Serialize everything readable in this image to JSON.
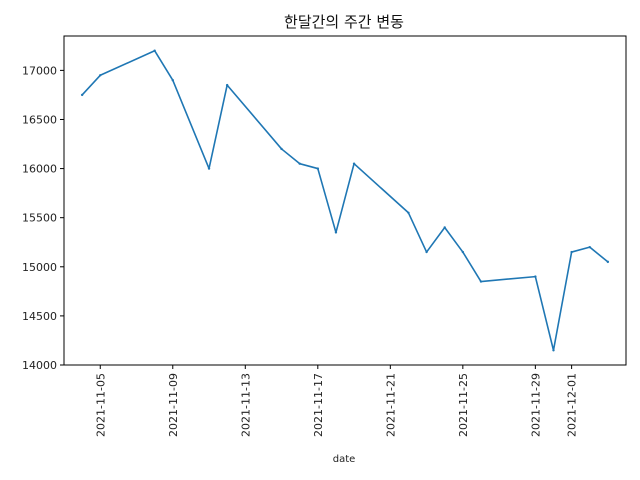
{
  "chart_data": {
    "type": "line",
    "title": "한달간의 주간 변동",
    "xlabel": "date",
    "ylabel": "",
    "x_ticks": [
      "2021-11-05",
      "2021-11-09",
      "2021-11-13",
      "2021-11-17",
      "2021-11-21",
      "2021-11-25",
      "2021-11-29",
      "2021-12-01"
    ],
    "y_ticks": [
      14000,
      14500,
      15000,
      15500,
      16000,
      16500,
      17000
    ],
    "xlim": [
      "2021-11-03",
      "2021-12-04"
    ],
    "ylim": [
      14000,
      17350
    ],
    "grid": false,
    "series": [
      {
        "color": "#1f77b4",
        "points": [
          {
            "x": "2021-11-04",
            "y": 16750
          },
          {
            "x": "2021-11-05",
            "y": 16950
          },
          {
            "x": "2021-11-08",
            "y": 17200
          },
          {
            "x": "2021-11-09",
            "y": 16900
          },
          {
            "x": "2021-11-11",
            "y": 16000
          },
          {
            "x": "2021-11-12",
            "y": 16850
          },
          {
            "x": "2021-11-15",
            "y": 16200
          },
          {
            "x": "2021-11-16",
            "y": 16050
          },
          {
            "x": "2021-11-17",
            "y": 16000
          },
          {
            "x": "2021-11-18",
            "y": 15350
          },
          {
            "x": "2021-11-19",
            "y": 16050
          },
          {
            "x": "2021-11-22",
            "y": 15550
          },
          {
            "x": "2021-11-23",
            "y": 15150
          },
          {
            "x": "2021-11-24",
            "y": 15400
          },
          {
            "x": "2021-11-25",
            "y": 15150
          },
          {
            "x": "2021-11-26",
            "y": 14850
          },
          {
            "x": "2021-11-29",
            "y": 14900
          },
          {
            "x": "2021-11-30",
            "y": 14150
          },
          {
            "x": "2021-12-01",
            "y": 15150
          },
          {
            "x": "2021-12-02",
            "y": 15200
          },
          {
            "x": "2021-12-03",
            "y": 15050
          }
        ]
      }
    ]
  }
}
